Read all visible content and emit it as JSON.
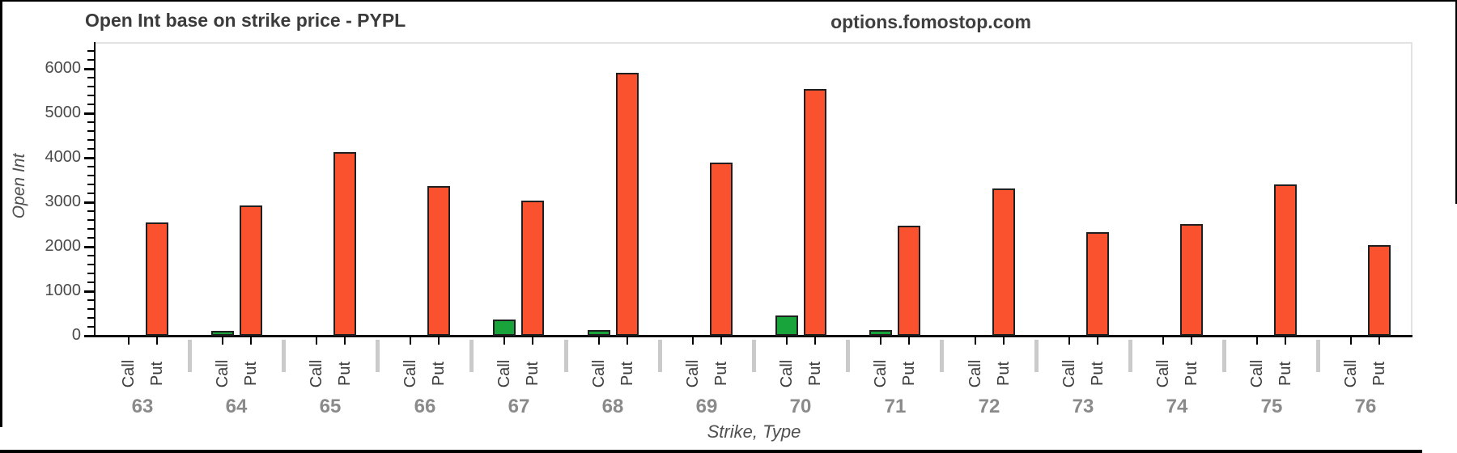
{
  "header": {
    "title": "Open Int base on strike price - PYPL",
    "watermark": "options.fomostop.com"
  },
  "chart_data": {
    "type": "bar",
    "title": "Open Int base on strike price - PYPL",
    "xlabel": "Strike, Type",
    "ylabel": "Open Int",
    "ylim": [
      0,
      6600
    ],
    "yticks": [
      0,
      1000,
      2000,
      3000,
      4000,
      5000,
      6000
    ],
    "minor_tick_interval": 200,
    "grid": "off",
    "legend_position": "none",
    "bar_sublabels": [
      "Call",
      "Put"
    ],
    "categories": [
      "63",
      "64",
      "65",
      "66",
      "67",
      "68",
      "69",
      "70",
      "71",
      "72",
      "73",
      "74",
      "75",
      "76"
    ],
    "series": [
      {
        "name": "Call",
        "color": "#18A43A",
        "values": [
          0,
          110,
          0,
          0,
          370,
          120,
          0,
          460,
          130,
          0,
          0,
          0,
          0,
          0
        ]
      },
      {
        "name": "Put",
        "color": "#FA512E",
        "values": [
          2550,
          2930,
          4130,
          3360,
          3030,
          5900,
          3890,
          5550,
          2480,
          3300,
          2330,
          2500,
          3400,
          2030
        ]
      }
    ]
  },
  "colors": {
    "call_green": "#18A43A",
    "put_red": "#FA512E",
    "bar_border": "#1F1F1F",
    "axis": "#000000",
    "strike_label_gray": "#8A8A8A",
    "plot_border_gray": "#E2E2E2"
  }
}
